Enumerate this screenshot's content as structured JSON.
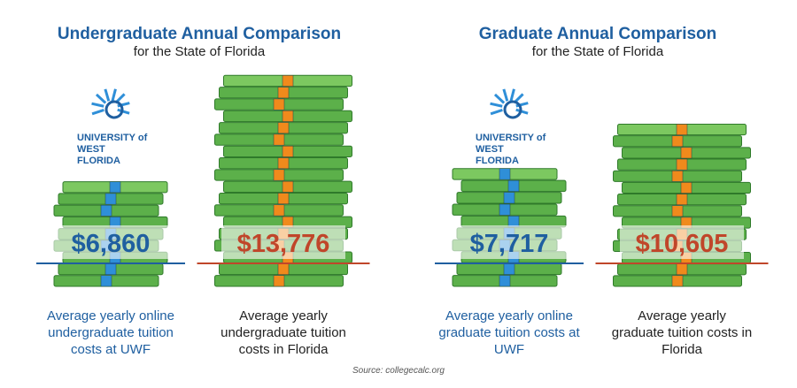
{
  "chart_data": [
    {
      "type": "pictograph",
      "title": "Undergraduate Annual Comparison",
      "subtitle": "for the State of Florida",
      "logo": "UNIVERSITY of WEST FLORIDA",
      "categories": [
        "Average yearly online undergraduate tuition costs at UWF",
        "Average yearly undergraduate tuition costs in Florida"
      ],
      "values": [
        6860,
        13776
      ],
      "value_labels": [
        "$6,860",
        "$13,776"
      ],
      "colors": [
        "#1f5fa0",
        "#c0462a"
      ],
      "bands": [
        "#2f8fd8",
        "#f08a1c"
      ]
    },
    {
      "type": "pictograph",
      "title": "Graduate Annual Comparison",
      "subtitle": "for the State of Florida",
      "logo": "UNIVERSITY of WEST FLORIDA",
      "categories": [
        "Average yearly online graduate tuition costs at UWF",
        "Average yearly graduate tuition costs in Florida"
      ],
      "values": [
        7717,
        10605
      ],
      "value_labels": [
        "$7,717",
        "$10,605"
      ],
      "colors": [
        "#1f5fa0",
        "#c0462a"
      ],
      "bands": [
        "#2f8fd8",
        "#f08a1c"
      ]
    }
  ],
  "source": "Source: collegecalc.org"
}
